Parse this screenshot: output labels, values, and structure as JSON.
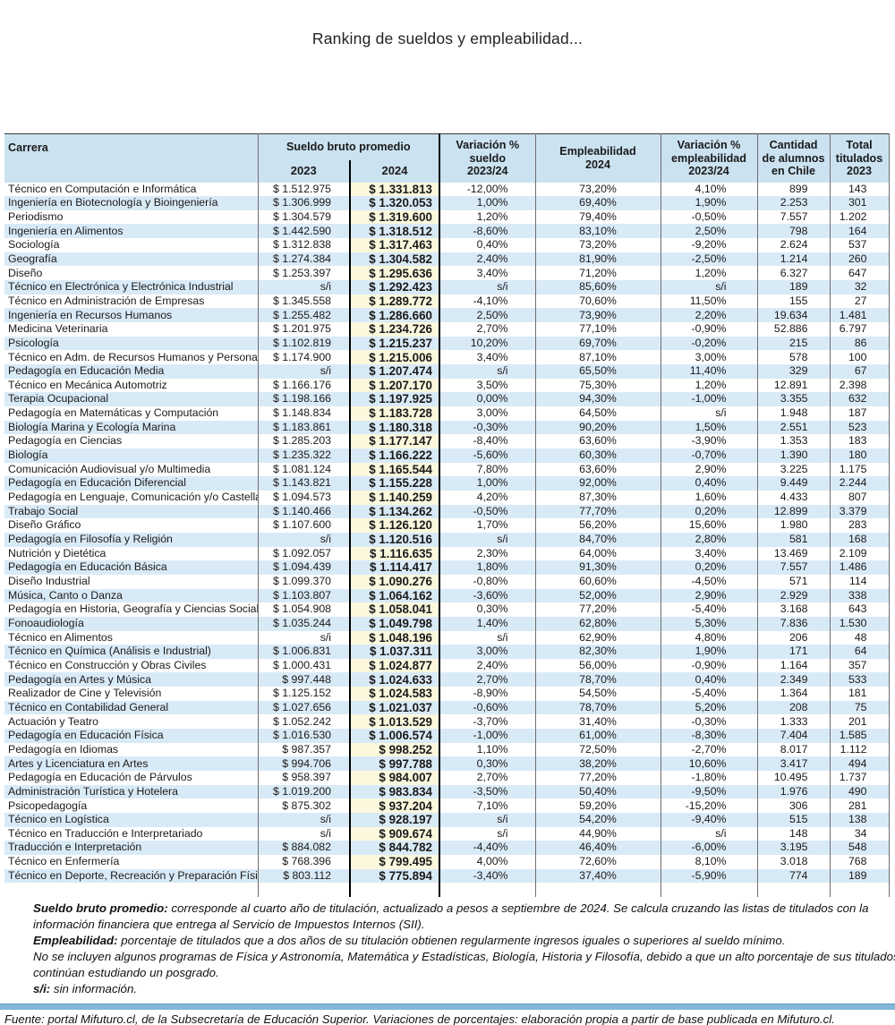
{
  "chart_data": {
    "type": "table",
    "title": "Ranking de sueldos y empleabilidad...",
    "columns": [
      "Carrera",
      "Sueldo bruto promedio 2023",
      "Sueldo bruto promedio 2024",
      "Variación % sueldo 2023/24",
      "Empleabilidad 2024",
      "Variación % empleabilidad 2023/24",
      "Cantidad de alumnos en Chile",
      "Total titulados 2023"
    ],
    "rows": [
      [
        "Técnico en Computación e Informática",
        "$ 1.512.975",
        "$ 1.331.813",
        "-12,00%",
        "73,20%",
        "4,10%",
        "899",
        "143"
      ],
      [
        "Ingeniería en Biotecnología y Bioingeniería",
        "$ 1.306.999",
        "$ 1.320.053",
        "1,00%",
        "69,40%",
        "1,90%",
        "2.253",
        "301"
      ],
      [
        "Periodismo",
        "$ 1.304.579",
        "$ 1.319.600",
        "1,20%",
        "79,40%",
        "-0,50%",
        "7.557",
        "1.202"
      ],
      [
        "Ingeniería en Alimentos",
        "$ 1.442.590",
        "$ 1.318.512",
        "-8,60%",
        "83,10%",
        "2,50%",
        "798",
        "164"
      ],
      [
        "Sociología",
        "$ 1.312.838",
        "$ 1.317.463",
        "0,40%",
        "73,20%",
        "-9,20%",
        "2.624",
        "537"
      ],
      [
        "Geografía",
        "$ 1.274.384",
        "$ 1.304.582",
        "2,40%",
        "81,90%",
        "-2,50%",
        "1.214",
        "260"
      ],
      [
        "Diseño",
        "$ 1.253.397",
        "$ 1.295.636",
        "3,40%",
        "71,20%",
        "1,20%",
        "6.327",
        "647"
      ],
      [
        "Técnico en Electrónica y Electrónica Industrial",
        "s/i",
        "$ 1.292.423",
        "s/i",
        "85,60%",
        "s/i",
        "189",
        "32"
      ],
      [
        "Técnico en Administración de Empresas",
        "$ 1.345.558",
        "$ 1.289.772",
        "-4,10%",
        "70,60%",
        "11,50%",
        "155",
        "27"
      ],
      [
        "Ingeniería en Recursos Humanos",
        "$ 1.255.482",
        "$ 1.286.660",
        "2,50%",
        "73,90%",
        "2,20%",
        "19.634",
        "1.481"
      ],
      [
        "Medicina Veterinaria",
        "$ 1.201.975",
        "$ 1.234.726",
        "2,70%",
        "77,10%",
        "-0,90%",
        "52.886",
        "6.797"
      ],
      [
        "Psicología",
        "$ 1.102.819",
        "$ 1.215.237",
        "10,20%",
        "69,70%",
        "-0,20%",
        "215",
        "86"
      ],
      [
        "Técnico en Adm. de Recursos Humanos y Personal",
        "$ 1.174.900",
        "$ 1.215.006",
        "3,40%",
        "87,10%",
        "3,00%",
        "578",
        "100"
      ],
      [
        "Pedagogía en Educación Media",
        "s/i",
        "$ 1.207.474",
        "s/i",
        "65,50%",
        "11,40%",
        "329",
        "67"
      ],
      [
        "Técnico en Mecánica Automotriz",
        "$ 1.166.176",
        "$ 1.207.170",
        "3,50%",
        "75,30%",
        "1,20%",
        "12.891",
        "2.398"
      ],
      [
        "Terapia Ocupacional",
        "$ 1.198.166",
        "$ 1.197.925",
        "0,00%",
        "94,30%",
        "-1,00%",
        "3.355",
        "632"
      ],
      [
        "Pedagogía en Matemáticas y Computación",
        "$ 1.148.834",
        "$ 1.183.728",
        "3,00%",
        "64,50%",
        "s/i",
        "1.948",
        "187"
      ],
      [
        "Biología Marina y Ecología Marina",
        "$ 1.183.861",
        "$ 1.180.318",
        "-0,30%",
        "90,20%",
        "1,50%",
        "2.551",
        "523"
      ],
      [
        "Pedagogía en Ciencias",
        "$ 1.285.203",
        "$ 1.177.147",
        "-8,40%",
        "63,60%",
        "-3,90%",
        "1.353",
        "183"
      ],
      [
        "Biología",
        "$ 1.235.322",
        "$ 1.166.222",
        "-5,60%",
        "60,30%",
        "-0,70%",
        "1.390",
        "180"
      ],
      [
        "Comunicación Audiovisual y/o Multimedia",
        "$ 1.081.124",
        "$ 1.165.544",
        "7,80%",
        "63,60%",
        "2,90%",
        "3.225",
        "1.175"
      ],
      [
        "Pedagogía en Educación Diferencial",
        "$ 1.143.821",
        "$ 1.155.228",
        "1,00%",
        "92,00%",
        "0,40%",
        "9.449",
        "2.244"
      ],
      [
        "Pedagogía en Lenguaje, Comunicación y/o Castellano",
        "$ 1.094.573",
        "$ 1.140.259",
        "4,20%",
        "87,30%",
        "1,60%",
        "4.433",
        "807"
      ],
      [
        "Trabajo Social",
        "$ 1.140.466",
        "$ 1.134.262",
        "-0,50%",
        "77,70%",
        "0,20%",
        "12.899",
        "3.379"
      ],
      [
        "Diseño Gráfico",
        "$ 1.107.600",
        "$ 1.126.120",
        "1,70%",
        "56,20%",
        "15,60%",
        "1.980",
        "283"
      ],
      [
        "Pedagogía en Filosofía y Religión",
        "s/i",
        "$ 1.120.516",
        "s/i",
        "84,70%",
        "2,80%",
        "581",
        "168"
      ],
      [
        "Nutrición y Dietética",
        "$ 1.092.057",
        "$ 1.116.635",
        "2,30%",
        "64,00%",
        "3,40%",
        "13.469",
        "2.109"
      ],
      [
        "Pedagogía en Educación Básica",
        "$ 1.094.439",
        "$ 1.114.417",
        "1,80%",
        "91,30%",
        "0,20%",
        "7.557",
        "1.486"
      ],
      [
        "Diseño Industrial",
        "$ 1.099.370",
        "$ 1.090.276",
        "-0,80%",
        "60,60%",
        "-4,50%",
        "571",
        "114"
      ],
      [
        "Música, Canto o Danza",
        "$ 1.103.807",
        "$ 1.064.162",
        "-3,60%",
        "52,00%",
        "2,90%",
        "2.929",
        "338"
      ],
      [
        "Pedagogía en Historia, Geografía y Ciencias Sociales",
        "$ 1.054.908",
        "$ 1.058.041",
        "0,30%",
        "77,20%",
        "-5,40%",
        "3.168",
        "643"
      ],
      [
        "Fonoaudiología",
        "$ 1.035.244",
        "$ 1.049.798",
        "1,40%",
        "62,80%",
        "5,30%",
        "7.836",
        "1.530"
      ],
      [
        "Técnico en Alimentos",
        "s/i",
        "$ 1.048.196",
        "s/i",
        "62,90%",
        "4,80%",
        "206",
        "48"
      ],
      [
        "Técnico en Química (Análisis e Industrial)",
        "$ 1.006.831",
        "$ 1.037.311",
        "3,00%",
        "82,30%",
        "1,90%",
        "171",
        "64"
      ],
      [
        "Técnico en Construcción y Obras Civiles",
        "$ 1.000.431",
        "$ 1.024.877",
        "2,40%",
        "56,00%",
        "-0,90%",
        "1.164",
        "357"
      ],
      [
        "Pedagogía en Artes y Música",
        "$ 997.448",
        "$ 1.024.633",
        "2,70%",
        "78,70%",
        "0,40%",
        "2.349",
        "533"
      ],
      [
        "Realizador de Cine y Televisión",
        "$ 1.125.152",
        "$ 1.024.583",
        "-8,90%",
        "54,50%",
        "-5,40%",
        "1.364",
        "181"
      ],
      [
        "Técnico en Contabilidad General",
        "$ 1.027.656",
        "$ 1.021.037",
        "-0,60%",
        "78,70%",
        "5,20%",
        "208",
        "75"
      ],
      [
        "Actuación y Teatro",
        "$ 1.052.242",
        "$ 1.013.529",
        "-3,70%",
        "31,40%",
        "-0,30%",
        "1.333",
        "201"
      ],
      [
        "Pedagogía en Educación Física",
        "$ 1.016.530",
        "$ 1.006.574",
        "-1,00%",
        "61,00%",
        "-8,30%",
        "7.404",
        "1.585"
      ],
      [
        "Pedagogía en Idiomas",
        "$ 987.357",
        "$ 998.252",
        "1,10%",
        "72,50%",
        "-2,70%",
        "8.017",
        "1.112"
      ],
      [
        "Artes y Licenciatura en Artes",
        "$ 994.706",
        "$ 997.788",
        "0,30%",
        "38,20%",
        "10,60%",
        "3.417",
        "494"
      ],
      [
        "Pedagogía en Educación de Párvulos",
        "$ 958.397",
        "$ 984.007",
        "2,70%",
        "77,20%",
        "-1,80%",
        "10.495",
        "1.737"
      ],
      [
        "Administración Turística y Hotelera",
        "$ 1.019.200",
        "$ 983.834",
        "-3,50%",
        "50,40%",
        "-9,50%",
        "1.976",
        "490"
      ],
      [
        "Psicopedagogía",
        "$ 875.302",
        "$ 937.204",
        "7,10%",
        "59,20%",
        "-15,20%",
        "306",
        "281"
      ],
      [
        "Técnico en Logística",
        "s/i",
        "$ 928.197",
        "s/i",
        "54,20%",
        "-9,40%",
        "515",
        "138"
      ],
      [
        "Técnico en Traducción e Interpretariado",
        "s/i",
        "$ 909.674",
        "s/i",
        "44,90%",
        "s/i",
        "148",
        "34"
      ],
      [
        "Traducción e Interpretación",
        "$ 884.082",
        "$ 844.782",
        "-4,40%",
        "46,40%",
        "-6,00%",
        "3.195",
        "548"
      ],
      [
        "Técnico en Enfermería",
        "$ 768.396",
        "$ 799.495",
        "4,00%",
        "72,60%",
        "8,10%",
        "3.018",
        "768"
      ],
      [
        "Técnico en Deporte, Recreación y Preparación Física",
        "$ 803.112",
        "$ 775.894",
        "-3,40%",
        "37,40%",
        "-5,90%",
        "774",
        "189"
      ]
    ]
  },
  "header_display": {
    "carrera": "Carrera",
    "sueldo_group": "Sueldo bruto promedio",
    "y2023": "2023",
    "y2024": "2024",
    "var_sueldo": "Variación %\nsueldo\n2023/24",
    "empleabilidad": "Empleabilidad\n2024",
    "var_empleabilidad": "Variación %\nempleabilidad\n2023/24",
    "alumnos": "Cantidad\nde alumnos\nen Chile",
    "titulados": "Total\ntitulados\n2023"
  },
  "notes": [
    {
      "lead": "Sueldo bruto promedio:",
      "text": "corresponde al cuarto año de titulación, actualizado a pesos a septiembre de 2024. Se calcula cruzando las listas de titulados con la información financiera que entrega al Servicio de Impuestos Internos (SII)."
    },
    {
      "lead": "Empleabilidad:",
      "text": "porcentaje de titulados que a dos años de su titulación obtienen regularmente ingresos iguales o superiores al sueldo mínimo."
    },
    {
      "lead": "",
      "text": "No se incluyen algunos programas de Física y Astronomía, Matemática y Estadísticas, Biología, Historia y Filosofía, debido a que un alto porcentaje de sus titulados continúan estudiando un posgrado."
    },
    {
      "lead": "s/i:",
      "text": "sin información."
    }
  ],
  "fuente": "Fuente: portal Mifuturo.cl, de la Subsecretaría de Educación Superior. Variaciones de porcentajes: elaboración propia a partir de base publicada en Mifuturo.cl.",
  "colors": {
    "header_bg": "#CBE2F1",
    "row_stripe_bg": "#D9EAF7",
    "highlight_2024_bg": "#FBF8DE",
    "thick_border": "#000000",
    "thin_border": "#6E6E6E",
    "divider_bar": "#84B7D8"
  }
}
